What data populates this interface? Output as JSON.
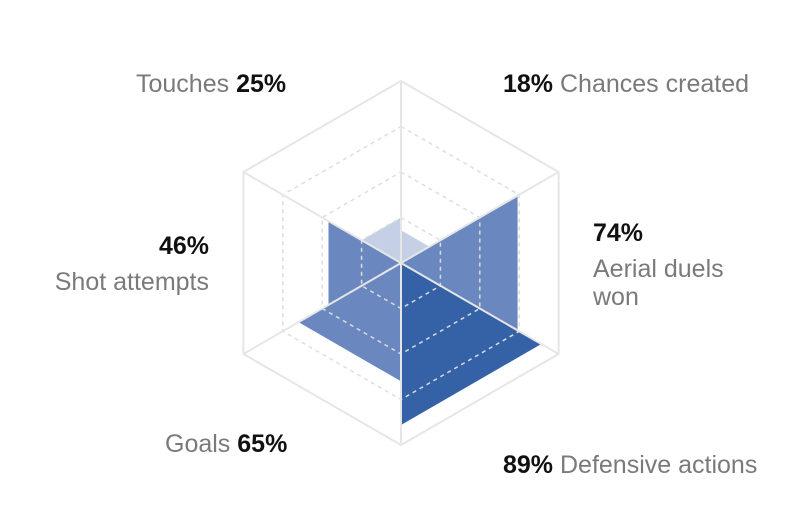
{
  "chart_data": {
    "type": "radar",
    "title": "",
    "axes": [
      {
        "name": "Touches",
        "value": 25,
        "label": "25%"
      },
      {
        "name": "Chances created",
        "value": 18,
        "label": "18%"
      },
      {
        "name": "Aerial duels won",
        "name_lines": [
          "Aerial duels",
          "won"
        ],
        "value": 74,
        "label": "74%"
      },
      {
        "name": "Defensive actions",
        "value": 89,
        "label": "89%"
      },
      {
        "name": "Goals",
        "value": 65,
        "label": "65%"
      },
      {
        "name": "Shot attempts",
        "value": 46,
        "label": "46%"
      }
    ],
    "range": [
      0,
      100
    ],
    "rings": 3,
    "colors": {
      "fill_light": "#c5d0e6",
      "fill_mid": "#6a88bf",
      "fill_dark": "#3562a6",
      "grid": "#e6e6e6",
      "grid_dashed": "#dddddd",
      "value_text": "#111111",
      "name_text": "#7a7a7a"
    }
  }
}
